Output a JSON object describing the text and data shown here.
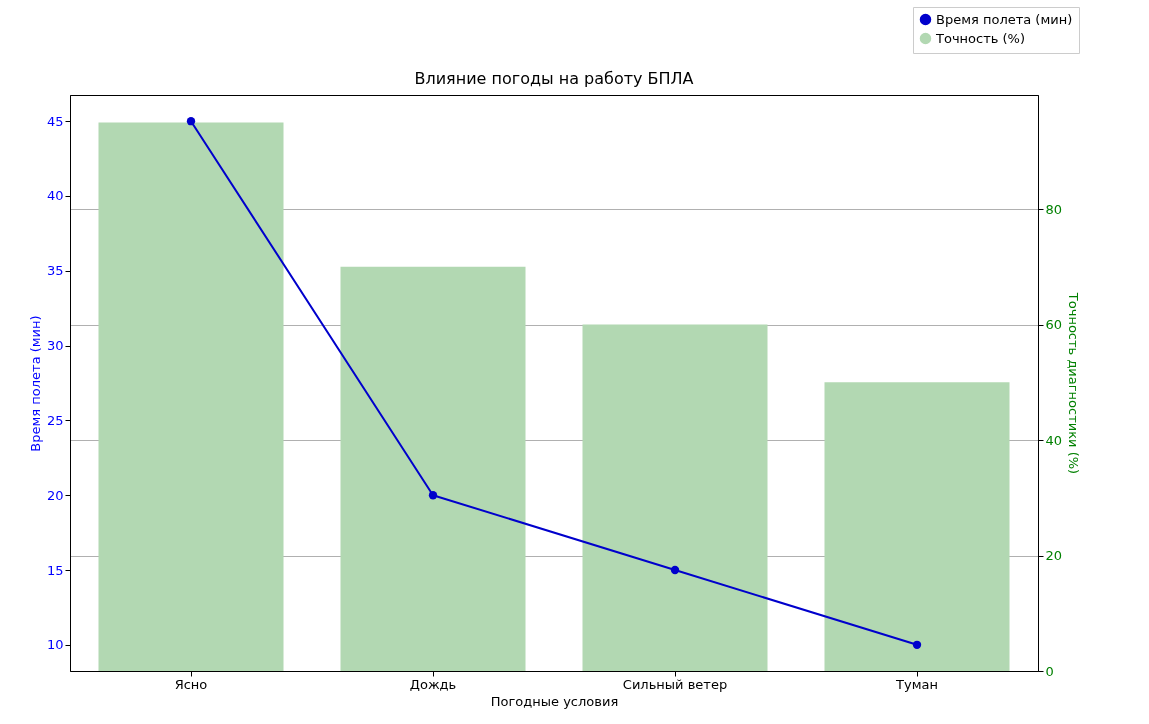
{
  "chart_data": {
    "type": "bar",
    "title": "Влияние погоды на работу БПЛА",
    "xlabel": "Погодные условия",
    "ylabel": "Время полета (мин)",
    "y2label": "Точность диагностики (%)",
    "categories": [
      "Ясно",
      "Дождь",
      "Сильный ветер",
      "Туман"
    ],
    "series": [
      {
        "name": "Время полета (мин)",
        "type": "line",
        "axis": "y",
        "color": "#0000cc",
        "values": [
          45,
          20,
          15,
          10
        ]
      },
      {
        "name": "Точность (%)",
        "axis": "y2",
        "color": "#b2d8b2",
        "values": [
          95,
          70,
          60,
          50
        ]
      }
    ],
    "ylim": [
      8.25,
      46.75
    ],
    "yticks": [
      10,
      15,
      20,
      25,
      30,
      35,
      40,
      45
    ],
    "y2lim": [
      0,
      99.75
    ],
    "y2ticks": [
      0,
      20,
      40,
      60,
      80
    ],
    "grid": "y2",
    "legend": "top right",
    "marker": "circle",
    "line_style": "solid"
  }
}
